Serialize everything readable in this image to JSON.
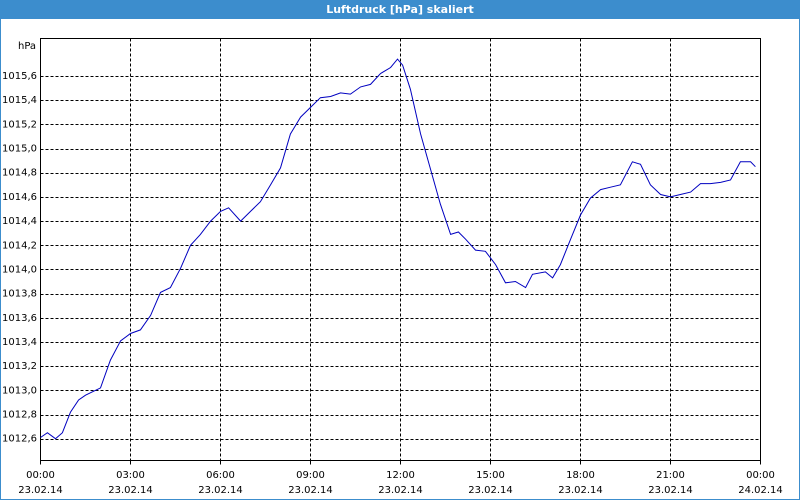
{
  "chart_data": {
    "type": "line",
    "title": "Luftdruck [hPa] skaliert",
    "y_label": "hPa",
    "color": "#0000c0",
    "grid": true,
    "x": [
      0,
      0.23,
      0.5,
      0.73,
      1,
      1.27,
      1.5,
      2,
      2.33,
      2.67,
      3,
      3.33,
      3.67,
      4,
      4.33,
      4.67,
      5,
      5.33,
      5.67,
      6,
      6.27,
      6.67,
      7,
      7.33,
      7.67,
      8,
      8.33,
      8.67,
      9,
      9.33,
      9.67,
      10,
      10.33,
      10.67,
      11,
      11.33,
      11.67,
      11.9,
      12.07,
      12.33,
      12.67,
      13,
      13.33,
      13.67,
      13.93,
      14.17,
      14.5,
      14.83,
      15.17,
      15.5,
      15.83,
      16.17,
      16.4,
      16.83,
      17.07,
      17.33,
      17.67,
      18,
      18.33,
      18.67,
      19,
      19.33,
      19.73,
      20,
      20.33,
      20.67,
      21,
      21.33,
      21.67,
      22,
      22.33,
      22.67,
      23,
      23.33,
      23.67,
      23.83
    ],
    "series": [
      {
        "name": "Luftdruck",
        "color": "#0000c0",
        "values": [
          1012.61,
          1012.65,
          1012.6,
          1012.65,
          1012.82,
          1012.92,
          1012.96,
          1013.02,
          1013.25,
          1013.41,
          1013.47,
          1013.5,
          1013.62,
          1013.81,
          1013.85,
          1014.01,
          1014.2,
          1014.29,
          1014.4,
          1014.48,
          1014.51,
          1014.4,
          1014.48,
          1014.56,
          1014.7,
          1014.84,
          1015.12,
          1015.26,
          1015.34,
          1015.42,
          1015.43,
          1015.46,
          1015.45,
          1015.51,
          1015.53,
          1015.62,
          1015.67,
          1015.74,
          1015.69,
          1015.49,
          1015.12,
          1014.83,
          1014.54,
          1014.29,
          1014.31,
          1014.25,
          1014.16,
          1014.15,
          1014.04,
          1013.89,
          1013.9,
          1013.85,
          1013.96,
          1013.98,
          1013.93,
          1014.04,
          1014.25,
          1014.45,
          1014.59,
          1014.66,
          1014.68,
          1014.7,
          1014.89,
          1014.87,
          1014.7,
          1014.62,
          1014.6,
          1014.62,
          1014.64,
          1014.71,
          1014.71,
          1014.72,
          1014.74,
          1014.89,
          1014.89,
          1014.85
        ]
      }
    ],
    "xlim": [
      0,
      24
    ],
    "xticks": [
      {
        "value": 0,
        "label": [
          "00:00",
          "23.02.14"
        ]
      },
      {
        "value": 3,
        "label": [
          "03:00",
          "23.02.14"
        ]
      },
      {
        "value": 6,
        "label": [
          "06:00",
          "23.02.14"
        ]
      },
      {
        "value": 9,
        "label": [
          "09:00",
          "23.02.14"
        ]
      },
      {
        "value": 12,
        "label": [
          "12:00",
          "23.02.14"
        ]
      },
      {
        "value": 15,
        "label": [
          "15:00",
          "23.02.14"
        ]
      },
      {
        "value": 18,
        "label": [
          "18:00",
          "23.02.14"
        ]
      },
      {
        "value": 21,
        "label": [
          "21:00",
          "23.02.14"
        ]
      },
      {
        "value": 24,
        "label": [
          "00:00",
          "24.02.14"
        ]
      }
    ],
    "ylim": [
      1012.42,
      1015.91
    ],
    "yticks": [
      {
        "value": 1012.6,
        "label": "1012,6"
      },
      {
        "value": 1012.8,
        "label": "1012,8"
      },
      {
        "value": 1013,
        "label": "1013,0"
      },
      {
        "value": 1013.2,
        "label": "1013,2"
      },
      {
        "value": 1013.4,
        "label": "1013,4"
      },
      {
        "value": 1013.6,
        "label": "1013,6"
      },
      {
        "value": 1013.8,
        "label": "1013,8"
      },
      {
        "value": 1014,
        "label": "1014,0"
      },
      {
        "value": 1014.2,
        "label": "1014,2"
      },
      {
        "value": 1014.4,
        "label": "1014,4"
      },
      {
        "value": 1014.6,
        "label": "1014,6"
      },
      {
        "value": 1014.8,
        "label": "1014,8"
      },
      {
        "value": 1015,
        "label": "1015,0"
      },
      {
        "value": 1015.2,
        "label": "1015,2"
      },
      {
        "value": 1015.4,
        "label": "1015,4"
      },
      {
        "value": 1015.6,
        "label": "1015,6"
      }
    ]
  }
}
